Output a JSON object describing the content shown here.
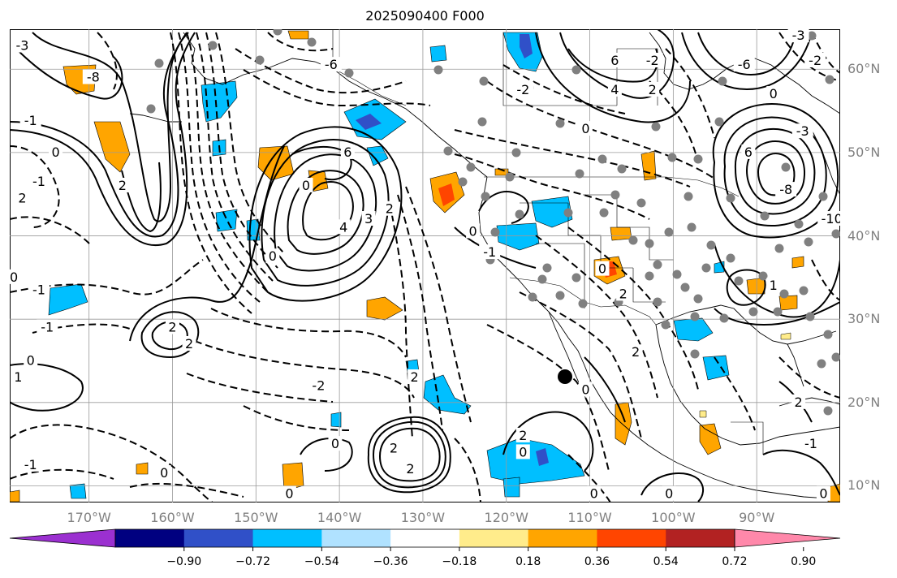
{
  "title": "2025090400 F000",
  "lat_labels": [
    {
      "text": "60°N",
      "lat": 60
    },
    {
      "text": "50°N",
      "lat": 50
    },
    {
      "text": "40°N",
      "lat": 40
    },
    {
      "text": "30°N",
      "lat": 30
    },
    {
      "text": "20°N",
      "lat": 20
    },
    {
      "text": "10°N",
      "lat": 10
    }
  ],
  "lon_labels": [
    {
      "text": "170°W",
      "lon": -170
    },
    {
      "text": "160°W",
      "lon": -160
    },
    {
      "text": "150°W",
      "lon": -150
    },
    {
      "text": "140°W",
      "lon": -140
    },
    {
      "text": "130°W",
      "lon": -130
    },
    {
      "text": "120°W",
      "lon": -120
    },
    {
      "text": "110°W",
      "lon": -110
    },
    {
      "text": "100°W",
      "lon": -100
    },
    {
      "text": "90°W",
      "lon": -90
    }
  ],
  "map_extent": {
    "lon_min": -179.5,
    "lon_max": -80.0,
    "lat_min": 8.0,
    "lat_max": 64.8
  },
  "colorbar": {
    "levels": [
      -0.9,
      -0.72,
      -0.54,
      -0.36,
      -0.18,
      0.18,
      0.36,
      0.54,
      0.72,
      0.9
    ],
    "tick_labels": [
      "−0.90",
      "−0.72",
      "−0.54",
      "−0.36",
      "−0.18",
      "0.18",
      "0.36",
      "0.54",
      "0.72",
      "0.90"
    ],
    "colors": [
      "#9b30d0",
      "#000080",
      "#3050c8",
      "#00bfff",
      "#b0e2ff",
      "#ffffff",
      "#ffec8b",
      "#ffa500",
      "#ff4500",
      "#b22222",
      "#ff88aa"
    ],
    "extend": "both"
  },
  "contour_labels": [
    {
      "text": "-3",
      "lon": -178.0,
      "lat": 62.8
    },
    {
      "text": "-8",
      "lon": -169.5,
      "lat": 59.0
    },
    {
      "text": "-1",
      "lon": -177.0,
      "lat": 53.8
    },
    {
      "text": "0",
      "lon": -174.0,
      "lat": 50.0
    },
    {
      "text": "2",
      "lon": -178.0,
      "lat": 44.5
    },
    {
      "text": "-1",
      "lon": -176.0,
      "lat": 46.5
    },
    {
      "text": "2",
      "lon": -166.0,
      "lat": 46.0
    },
    {
      "text": "0",
      "lon": -179.0,
      "lat": 35.0
    },
    {
      "text": "-1",
      "lon": -176.0,
      "lat": 33.5
    },
    {
      "text": "-1",
      "lon": -175.0,
      "lat": 29.0
    },
    {
      "text": "0",
      "lon": -177.0,
      "lat": 25.0
    },
    {
      "text": "1",
      "lon": -178.5,
      "lat": 23.0
    },
    {
      "text": "-1",
      "lon": -177.0,
      "lat": 12.5
    },
    {
      "text": "-6",
      "lon": -141.0,
      "lat": 60.5
    },
    {
      "text": "6",
      "lon": -139.0,
      "lat": 50.0
    },
    {
      "text": "0",
      "lon": -148.0,
      "lat": 37.5
    },
    {
      "text": "0",
      "lon": -144.0,
      "lat": 46.0
    },
    {
      "text": "4",
      "lon": -139.5,
      "lat": 41.0
    },
    {
      "text": "3",
      "lon": -136.5,
      "lat": 42.0
    },
    {
      "text": "2",
      "lon": -134.0,
      "lat": 43.2
    },
    {
      "text": "2",
      "lon": -160.0,
      "lat": 29.0
    },
    {
      "text": "2",
      "lon": -158.0,
      "lat": 27.0
    },
    {
      "text": "-2",
      "lon": -142.5,
      "lat": 22.0
    },
    {
      "text": "2",
      "lon": -131.0,
      "lat": 23.0
    },
    {
      "text": "0",
      "lon": -140.5,
      "lat": 15.0
    },
    {
      "text": "0",
      "lon": -146.0,
      "lat": 9.0
    },
    {
      "text": "0",
      "lon": -161.0,
      "lat": 11.5
    },
    {
      "text": "2",
      "lon": -133.5,
      "lat": 14.5
    },
    {
      "text": "2",
      "lon": -131.5,
      "lat": 12.0
    },
    {
      "text": "6",
      "lon": -107.0,
      "lat": 61.0
    },
    {
      "text": "4",
      "lon": -107.0,
      "lat": 57.5
    },
    {
      "text": "2",
      "lon": -102.5,
      "lat": 57.5
    },
    {
      "text": "-2",
      "lon": -102.5,
      "lat": 61.0
    },
    {
      "text": "-6",
      "lon": -91.5,
      "lat": 60.5
    },
    {
      "text": "0",
      "lon": -88.0,
      "lat": 57.0
    },
    {
      "text": "-3",
      "lon": -85.0,
      "lat": 64.0
    },
    {
      "text": "-2",
      "lon": -83.0,
      "lat": 61.0
    },
    {
      "text": "-2",
      "lon": -118.0,
      "lat": 57.5
    },
    {
      "text": "0",
      "lon": -110.5,
      "lat": 52.8
    },
    {
      "text": "6",
      "lon": -91.0,
      "lat": 50.0
    },
    {
      "text": "-8",
      "lon": -86.5,
      "lat": 45.5
    },
    {
      "text": "-10",
      "lon": -81.0,
      "lat": 42.0
    },
    {
      "text": "-3",
      "lon": -84.5,
      "lat": 52.5
    },
    {
      "text": "0",
      "lon": -124.0,
      "lat": 40.5
    },
    {
      "text": "-1",
      "lon": -122.0,
      "lat": 38.0
    },
    {
      "text": "0",
      "lon": -108.5,
      "lat": 36.0
    },
    {
      "text": "1",
      "lon": -88.0,
      "lat": 34.0
    },
    {
      "text": "2",
      "lon": -106.0,
      "lat": 33.0
    },
    {
      "text": "2",
      "lon": -104.5,
      "lat": 26.0
    },
    {
      "text": "0",
      "lon": -110.5,
      "lat": 21.5
    },
    {
      "text": "0",
      "lon": -109.5,
      "lat": 9.0
    },
    {
      "text": "0",
      "lon": -100.5,
      "lat": 9.0
    },
    {
      "text": "2",
      "lon": -85.0,
      "lat": 20.0
    },
    {
      "text": "-1",
      "lon": -83.5,
      "lat": 15.0
    },
    {
      "text": "0",
      "lon": -82.0,
      "lat": 9.0
    },
    {
      "text": "0",
      "lon": -118.0,
      "lat": 14.0
    },
    {
      "text": "2",
      "lon": -118.0,
      "lat": 16.0
    }
  ]
}
